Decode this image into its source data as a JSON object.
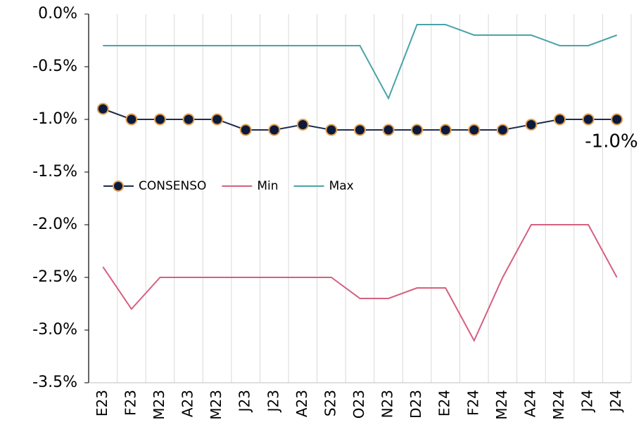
{
  "chart_data": {
    "type": "line",
    "categories": [
      "E23",
      "F23",
      "M23",
      "A23",
      "M23",
      "J23",
      "J23",
      "A23",
      "S23",
      "O23",
      "N23",
      "D23",
      "E24",
      "F24",
      "M24",
      "A24",
      "M24",
      "J24",
      "J24"
    ],
    "series": [
      {
        "name": "CONSENSO",
        "color": "#1f2d4d",
        "marker_color": "#0b1a3c",
        "marker_edge": "#e3a152",
        "values": [
          -0.9,
          -1.0,
          -1.0,
          -1.0,
          -1.0,
          -1.1,
          -1.1,
          -1.05,
          -1.1,
          -1.1,
          -1.1,
          -1.1,
          -1.1,
          -1.1,
          -1.1,
          -1.05,
          -1.0,
          -1.0,
          -1.0
        ],
        "value_labels": [
          null,
          null,
          null,
          null,
          null,
          null,
          null,
          null,
          null,
          null,
          null,
          null,
          null,
          null,
          null,
          null,
          null,
          null,
          "-1.0%"
        ]
      },
      {
        "name": "Min",
        "color": "#d5607f",
        "values": [
          -2.4,
          -2.8,
          -2.5,
          -2.5,
          -2.5,
          -2.5,
          -2.5,
          -2.5,
          -2.5,
          -2.7,
          -2.7,
          -2.6,
          -2.6,
          -3.1,
          -2.5,
          -2.0,
          -2.0,
          -2.0,
          -2.5
        ]
      },
      {
        "name": "Max",
        "color": "#4aa3a8",
        "values": [
          -0.3,
          -0.3,
          -0.3,
          -0.3,
          -0.3,
          -0.3,
          -0.3,
          -0.3,
          -0.3,
          -0.3,
          -0.8,
          -0.1,
          -0.1,
          -0.2,
          -0.2,
          -0.2,
          -0.3,
          -0.3,
          -0.2
        ]
      }
    ],
    "ylim": [
      -3.5,
      0
    ],
    "yticks": [
      {
        "value": 0,
        "label": "0.0%"
      },
      {
        "value": -0.5,
        "label": "-0.5%"
      },
      {
        "value": -1.0,
        "label": "-1.0%"
      },
      {
        "value": -1.5,
        "label": "-1.5%"
      },
      {
        "value": -2.0,
        "label": "-2.0%"
      },
      {
        "value": -2.5,
        "label": "-2.5%"
      },
      {
        "value": -3.0,
        "label": "-3.0%"
      },
      {
        "value": -3.5,
        "label": "-3.5%"
      }
    ],
    "grid": "x",
    "legend": "center-left"
  }
}
